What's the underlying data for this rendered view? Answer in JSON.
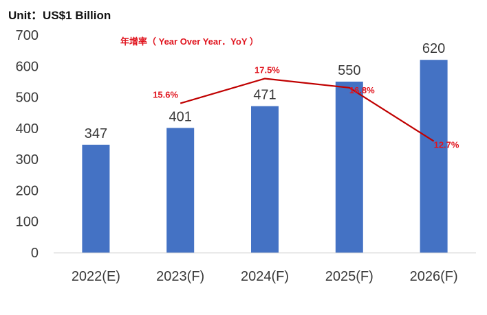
{
  "chart_data": {
    "type": "bar",
    "unit_label": "Unit：US$1 Billion",
    "categories": [
      "2022(E)",
      "2023(F)",
      "2024(F)",
      "2025(F)",
      "2026(F)"
    ],
    "series": [
      {
        "name": "Value",
        "values": [
          347,
          401,
          471,
          550,
          620
        ],
        "color": "#4472c4"
      }
    ],
    "yoy_line": {
      "title": "年增率（ Year Over Year．YoY ）",
      "color": "#c00000",
      "categories": [
        "2023(F)",
        "2024(F)",
        "2025(F)",
        "2026(F)"
      ],
      "values": [
        15.6,
        17.5,
        16.8,
        12.7
      ],
      "labels": [
        "15.6%",
        "17.5%",
        "16.8%",
        "12.7%"
      ]
    },
    "yticks": [
      0,
      100,
      200,
      300,
      400,
      500,
      600,
      700
    ],
    "ylim": [
      0,
      700
    ]
  }
}
